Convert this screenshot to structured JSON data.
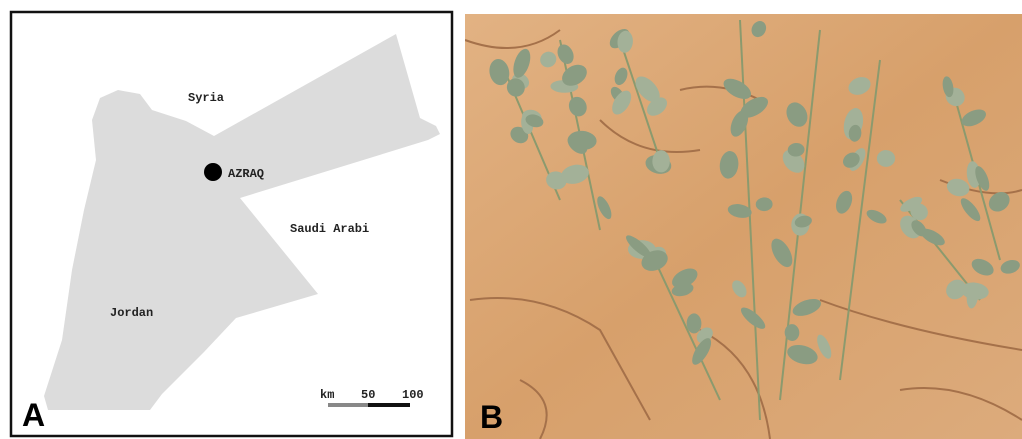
{
  "panel_a": {
    "letter": "A",
    "places": [
      "Syria",
      "AZRAQ",
      "Saudi Arabi",
      "Jordan"
    ],
    "scale": {
      "unit": "km",
      "ticks": [
        "50",
        "100"
      ]
    }
  },
  "panel_b": {
    "letter": "B"
  }
}
